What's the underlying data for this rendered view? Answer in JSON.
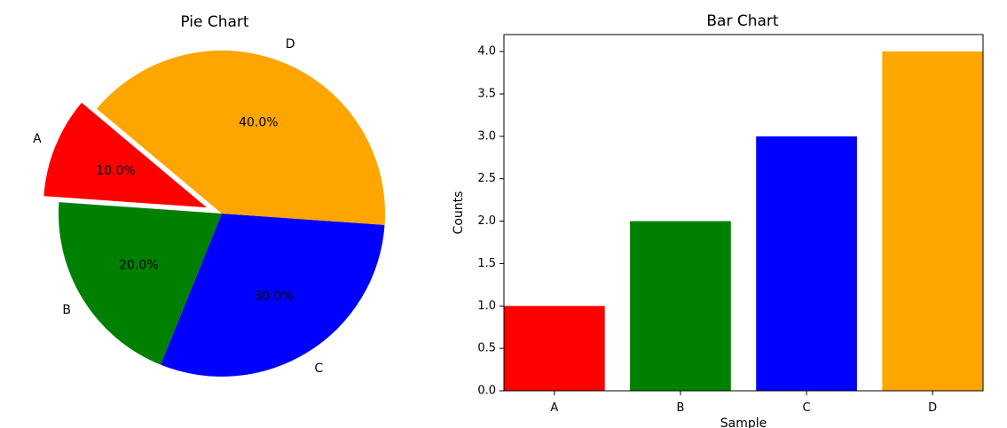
{
  "chart_data": [
    {
      "type": "pie",
      "title": "Pie Chart",
      "labels": [
        "A",
        "B",
        "C",
        "D"
      ],
      "values": [
        10,
        20,
        30,
        40
      ],
      "percent_labels": [
        "10.0%",
        "20.0%",
        "30.0%",
        "40.0%"
      ],
      "colors": [
        "#ff0000",
        "#008000",
        "#0000ff",
        "#ffa500"
      ],
      "explode": [
        0.1,
        0,
        0,
        0
      ],
      "start_angle": 140,
      "direction": "counterclockwise"
    },
    {
      "type": "bar",
      "title": "Bar Chart",
      "categories": [
        "A",
        "B",
        "C",
        "D"
      ],
      "values": [
        1,
        2,
        3,
        4
      ],
      "colors": [
        "#ff0000",
        "#008000",
        "#0000ff",
        "#ffa500"
      ],
      "xlabel": "Sample",
      "ylabel": "Counts",
      "ylim": [
        0,
        4.2
      ],
      "yticks": [
        "0.0",
        "0.5",
        "1.0",
        "1.5",
        "2.0",
        "2.5",
        "3.0",
        "3.5",
        "4.0"
      ],
      "grid": false
    }
  ]
}
